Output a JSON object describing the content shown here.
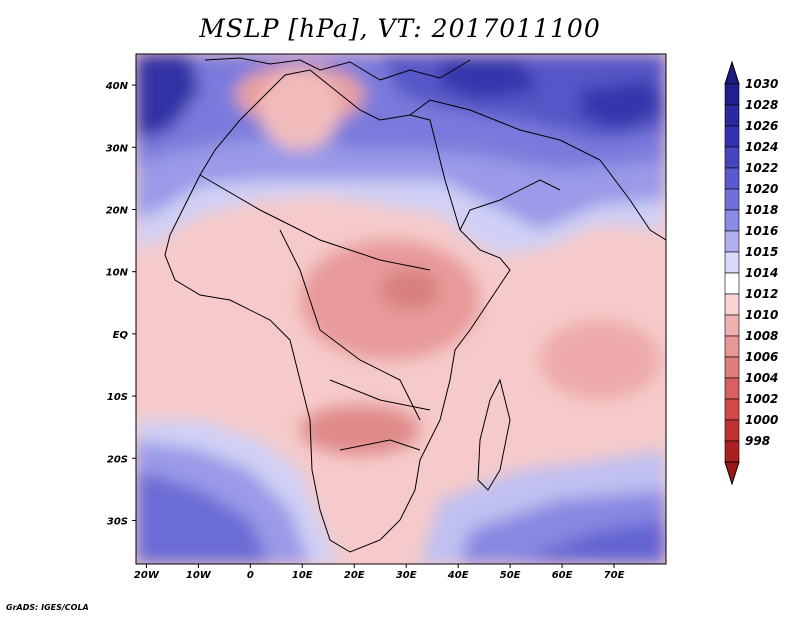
{
  "title": "MSLP [hPa], VT: 2017011100",
  "credit": "GrADS: IGES/COLA",
  "map": {
    "lon_ticks": [
      {
        "value": -20,
        "label": "20W"
      },
      {
        "value": -10,
        "label": "10W"
      },
      {
        "value": 0,
        "label": "0"
      },
      {
        "value": 10,
        "label": "10E"
      },
      {
        "value": 20,
        "label": "20E"
      },
      {
        "value": 30,
        "label": "30E"
      },
      {
        "value": 40,
        "label": "40E"
      },
      {
        "value": 50,
        "label": "50E"
      },
      {
        "value": 60,
        "label": "60E"
      },
      {
        "value": 70,
        "label": "70E"
      }
    ],
    "lat_ticks": [
      {
        "value": 40,
        "label": "40N"
      },
      {
        "value": 30,
        "label": "30N"
      },
      {
        "value": 20,
        "label": "20N"
      },
      {
        "value": 10,
        "label": "10N"
      },
      {
        "value": 0,
        "label": "EQ"
      },
      {
        "value": -10,
        "label": "10S"
      },
      {
        "value": -20,
        "label": "20S"
      },
      {
        "value": -30,
        "label": "30S"
      }
    ],
    "lon_range": [
      -22,
      80
    ],
    "lat_range": [
      -37,
      45
    ]
  },
  "colorbar": {
    "levels": [
      {
        "label": "1030",
        "color": "#1f1f8f"
      },
      {
        "label": "1028",
        "color": "#2a2aa0"
      },
      {
        "label": "1026",
        "color": "#3333b0"
      },
      {
        "label": "1024",
        "color": "#4646c0"
      },
      {
        "label": "1022",
        "color": "#5a5ad0"
      },
      {
        "label": "1020",
        "color": "#7070dc"
      },
      {
        "label": "1018",
        "color": "#8b8be6"
      },
      {
        "label": "1016",
        "color": "#b0b0f0"
      },
      {
        "label": "1015",
        "color": "#d8d8f8"
      },
      {
        "label": "1014",
        "color": "#ffffff"
      },
      {
        "label": "1012",
        "color": "#f8d4d4"
      },
      {
        "label": "1010",
        "color": "#f0b0b0"
      },
      {
        "label": "1008",
        "color": "#e89696"
      },
      {
        "label": "1006",
        "color": "#e07c7c"
      },
      {
        "label": "1004",
        "color": "#d86060"
      },
      {
        "label": "1002",
        "color": "#d04848"
      },
      {
        "label": "1000",
        "color": "#c03232"
      },
      {
        "label": "998",
        "color": "#a82020"
      }
    ],
    "top_color": "#1c1c80",
    "bottom_color": "#9a1818"
  }
}
